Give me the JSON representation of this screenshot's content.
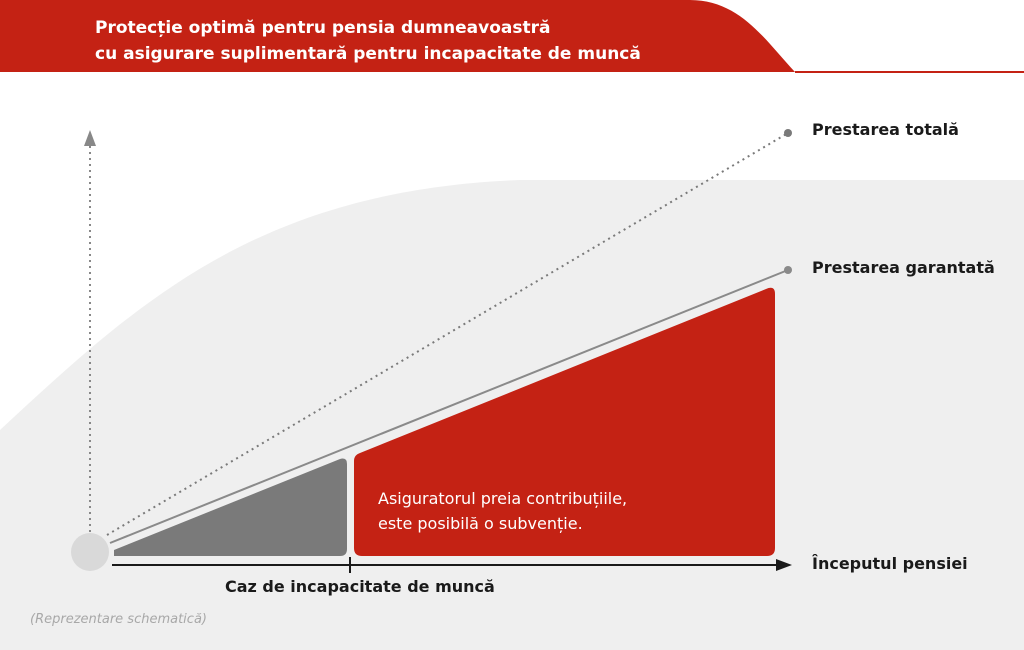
{
  "header": {
    "title_line1": "Protecție optimă pentru pensia dumneavoastră",
    "title_line2": "cu asigurare suplimentară pentru incapacitate de muncă"
  },
  "labels": {
    "total_benefit": "Prestarea totală",
    "guaranteed_benefit": "Prestarea garantată",
    "pension_start": "Începutul pensiei",
    "disability_event": "Caz de incapacitate de muncă",
    "callout_line1": "Asiguratorul preia contribuțiile,",
    "callout_line2": "este posibilă o subvenție.",
    "note": "(Reprezentare schematică)"
  },
  "colors": {
    "accent_red": "#c42214",
    "dark_gray": "#7a7a7a",
    "light_gray_bg": "#efefef",
    "line_gray": "#8a8a8a"
  }
}
